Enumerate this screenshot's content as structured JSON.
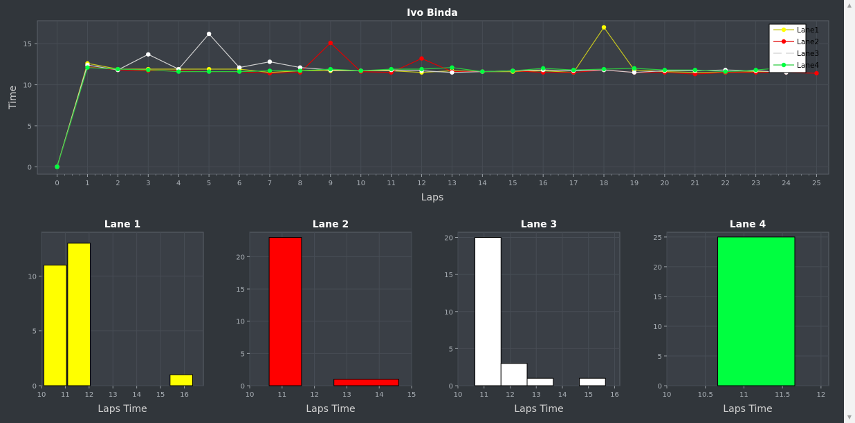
{
  "main_chart": {
    "title": "Ivo Binda",
    "xlabel": "Laps",
    "ylabel": "Time",
    "x_ticks": [
      0,
      1,
      2,
      3,
      4,
      5,
      6,
      7,
      8,
      9,
      10,
      11,
      12,
      13,
      14,
      15,
      16,
      17,
      18,
      19,
      20,
      21,
      22,
      23,
      24,
      25
    ],
    "y_ticks": [
      0,
      5,
      10,
      15
    ],
    "xlim": [
      -0.65,
      25.4
    ],
    "ylim": [
      -0.9,
      17.8
    ],
    "legend_position": "top-right"
  },
  "chart_data": [
    {
      "type": "line",
      "title": "Ivo Binda",
      "xlabel": "Laps",
      "ylabel": "Time",
      "legend": "top-right",
      "grid": true,
      "x": [
        0,
        1,
        2,
        3,
        4,
        5,
        6,
        7,
        8,
        9,
        10,
        11,
        12,
        13,
        14,
        15,
        16,
        17,
        18,
        19,
        20,
        21,
        22,
        23,
        24,
        25
      ],
      "series": [
        {
          "name": "Lane1",
          "color": "#ffff00",
          "line_color": "#c8c81e",
          "values": [
            0,
            12.6,
            11.9,
            11.9,
            11.9,
            11.9,
            11.9,
            11.5,
            11.7,
            11.7,
            11.7,
            11.7,
            11.5,
            11.7,
            11.6,
            11.6,
            11.7,
            11.5,
            17.0,
            11.8,
            11.6,
            11.5,
            11.5,
            11.6,
            11.6,
            null
          ]
        },
        {
          "name": "Lane2",
          "color": "#ff0000",
          "line_color": "#e00000",
          "values": [
            0,
            12.2,
            11.8,
            11.7,
            11.7,
            11.6,
            11.6,
            11.4,
            11.5,
            15.1,
            11.6,
            11.5,
            13.2,
            11.6,
            11.6,
            11.7,
            11.5,
            11.5,
            11.8,
            11.5,
            11.5,
            11.3,
            11.5,
            11.5,
            11.5,
            11.4
          ]
        },
        {
          "name": "Lane3",
          "color": "#ffffff",
          "line_color": "#d0d0d0",
          "values": [
            0,
            12.4,
            11.8,
            13.7,
            11.9,
            16.2,
            12.1,
            12.8,
            12.1,
            11.8,
            11.7,
            11.8,
            11.7,
            11.5,
            11.6,
            11.7,
            11.8,
            11.7,
            11.8,
            11.5,
            11.7,
            11.7,
            11.8,
            11.7,
            11.5,
            null
          ]
        },
        {
          "name": "Lane4",
          "color": "#00ff40",
          "line_color": "#2ecc40",
          "values": [
            0,
            12.1,
            11.9,
            11.8,
            11.6,
            11.6,
            11.6,
            11.7,
            11.7,
            11.9,
            11.7,
            11.9,
            11.9,
            12.1,
            11.6,
            11.7,
            12.0,
            11.8,
            11.9,
            12.0,
            11.8,
            11.8,
            11.6,
            11.8,
            12.1,
            null
          ]
        }
      ]
    },
    {
      "type": "bar",
      "title": "Lane 1",
      "xlabel": "Laps Time",
      "color": "#ffff00",
      "x_ticks": [
        10,
        11,
        12,
        13,
        14,
        15,
        16
      ],
      "y_ticks": [
        0,
        5,
        10
      ],
      "xlim": [
        10,
        16.8
      ],
      "ylim": [
        0,
        14
      ],
      "bins": [
        {
          "from": 10.1,
          "to": 11.05,
          "value": 11
        },
        {
          "from": 11.1,
          "to": 12.05,
          "value": 13
        },
        {
          "from": 15.4,
          "to": 16.35,
          "value": 1
        }
      ]
    },
    {
      "type": "bar",
      "title": "Lane 2",
      "xlabel": "Laps Time",
      "color": "#ff0000",
      "x_ticks": [
        10,
        11,
        12,
        13,
        14,
        15
      ],
      "y_ticks": [
        0,
        5,
        10,
        15,
        20
      ],
      "xlim": [
        10,
        15
      ],
      "ylim": [
        0,
        23.8
      ],
      "bins": [
        {
          "from": 10.6,
          "to": 11.6,
          "value": 23
        },
        {
          "from": 12.6,
          "to": 14.6,
          "value": 1
        }
      ]
    },
    {
      "type": "bar",
      "title": "Lane 3",
      "xlabel": "Laps Time",
      "color": "#ffffff",
      "x_ticks": [
        10,
        11,
        12,
        13,
        14,
        15,
        16
      ],
      "y_ticks": [
        0,
        5,
        10,
        15,
        20
      ],
      "xlim": [
        10,
        16.2
      ],
      "ylim": [
        0,
        20.7
      ],
      "bins": [
        {
          "from": 10.65,
          "to": 11.65,
          "value": 20
        },
        {
          "from": 11.65,
          "to": 12.65,
          "value": 3
        },
        {
          "from": 12.65,
          "to": 13.65,
          "value": 1
        },
        {
          "from": 14.65,
          "to": 15.65,
          "value": 1
        }
      ]
    },
    {
      "type": "bar",
      "title": "Lane 4",
      "xlabel": "Laps Time",
      "color": "#00ff40",
      "x_ticks": [
        10,
        10.5,
        11,
        11.5,
        12
      ],
      "y_ticks": [
        0,
        5,
        10,
        15,
        20,
        25
      ],
      "xlim": [
        10,
        12.1
      ],
      "ylim": [
        0,
        25.8
      ],
      "bins": [
        {
          "from": 10.66,
          "to": 11.66,
          "value": 25
        }
      ]
    }
  ],
  "scrollbar": {
    "up_glyph": "▲",
    "down_glyph": "▼"
  }
}
